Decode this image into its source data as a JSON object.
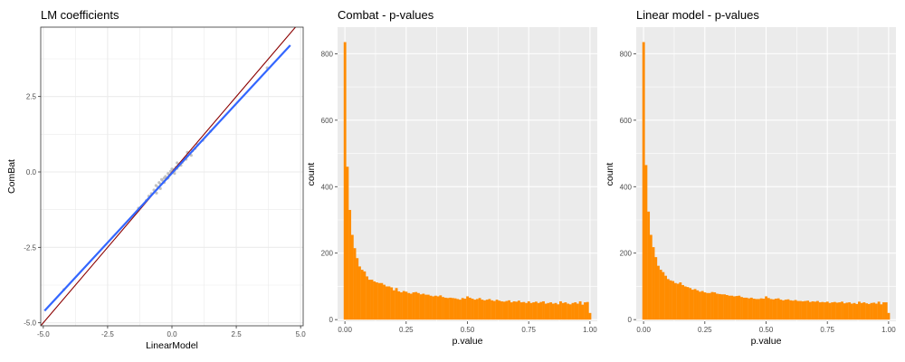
{
  "colors": {
    "bar_fill": "#ff8c00",
    "regression_line": "#3366ff",
    "identity_line": "#8b0000",
    "scatter_points": "#b3b3b3",
    "panel_bg_grey": "#ebebeb",
    "panel_bg_white": "#ffffff",
    "grid_on_grey": "#ffffff",
    "grid_on_white": "#ebebeb"
  },
  "chart_data": [
    {
      "type": "scatter",
      "title": "LM coefficients",
      "xlabel": "LinearModel",
      "ylabel": "ComBat",
      "xlim": [
        -5.1,
        5.1
      ],
      "ylim": [
        -5.1,
        4.8
      ],
      "x_ticks": [
        -5.0,
        -2.5,
        0.0,
        2.5,
        5.0
      ],
      "x_tick_labels": [
        "-5.0",
        "-2.5",
        "0.0",
        "2.5",
        "5.0"
      ],
      "y_ticks": [
        -5.0,
        -2.5,
        0.0,
        2.5
      ],
      "y_tick_labels": [
        "-5.0",
        "-2.5",
        "0.0",
        "2.5"
      ],
      "grid": true,
      "points": [
        [
          -0.62,
          -0.45
        ],
        [
          -0.55,
          -0.5
        ],
        [
          -0.5,
          -0.35
        ],
        [
          -0.45,
          -0.4
        ],
        [
          -0.4,
          -0.25
        ],
        [
          -0.35,
          -0.3
        ],
        [
          -0.3,
          -0.2
        ],
        [
          -0.25,
          -0.15
        ],
        [
          -0.2,
          -0.22
        ],
        [
          -0.15,
          -0.05
        ],
        [
          -0.1,
          -0.1
        ],
        [
          -0.05,
          0.02
        ],
        [
          0.0,
          -0.02
        ],
        [
          0.05,
          0.08
        ],
        [
          0.1,
          0.05
        ],
        [
          0.15,
          0.15
        ],
        [
          0.2,
          0.12
        ],
        [
          0.25,
          0.2
        ],
        [
          0.3,
          0.25
        ],
        [
          0.35,
          0.3
        ],
        [
          0.4,
          0.32
        ],
        [
          0.45,
          0.38
        ],
        [
          0.5,
          0.45
        ],
        [
          0.55,
          0.42
        ],
        [
          0.6,
          0.52
        ],
        [
          0.7,
          0.6
        ],
        [
          0.8,
          0.7
        ],
        [
          0.9,
          0.78
        ],
        [
          1.0,
          0.9
        ],
        [
          1.2,
          1.05
        ],
        [
          -0.7,
          -0.6
        ],
        [
          -0.8,
          -0.72
        ],
        [
          -0.9,
          -0.8
        ],
        [
          -1.0,
          -0.95
        ],
        [
          -0.3,
          -0.35
        ],
        [
          0.2,
          0.3
        ],
        [
          0.0,
          0.1
        ],
        [
          -0.15,
          -0.2
        ],
        [
          0.35,
          0.22
        ],
        [
          0.1,
          -0.05
        ],
        [
          -0.45,
          -0.55
        ],
        [
          0.6,
          0.65
        ],
        [
          0.75,
          0.55
        ],
        [
          -0.6,
          -0.7
        ],
        [
          3.7,
          3.45
        ],
        [
          -4.2,
          -3.9
        ],
        [
          1.5,
          1.35
        ],
        [
          -1.3,
          -1.2
        ]
      ],
      "regression_line": {
        "x": [
          -4.95,
          4.6
        ],
        "y": [
          -4.6,
          4.2
        ]
      },
      "identity_line": {
        "x": [
          -5.1,
          4.85
        ],
        "y": [
          -5.1,
          4.85
        ]
      }
    },
    {
      "type": "bar",
      "title": "Combat - p-values",
      "xlabel": "p.value",
      "ylabel": "count",
      "xlim": [
        -0.03,
        1.03
      ],
      "ylim": [
        -5,
        880
      ],
      "x_ticks": [
        0.0,
        0.25,
        0.5,
        0.75,
        1.0
      ],
      "x_tick_labels": [
        "0.00",
        "0.25",
        "0.50",
        "0.75",
        "1.00"
      ],
      "y_ticks": [
        0,
        200,
        400,
        600,
        800
      ],
      "y_tick_labels": [
        "0",
        "200",
        "400",
        "600",
        "800"
      ],
      "grid": true,
      "bin_width": 0.01,
      "bin_start": -0.005,
      "values": [
        835,
        460,
        330,
        255,
        215,
        185,
        160,
        150,
        145,
        130,
        120,
        120,
        115,
        112,
        110,
        110,
        105,
        100,
        100,
        97,
        88,
        95,
        85,
        82,
        86,
        84,
        80,
        78,
        82,
        83,
        80,
        76,
        78,
        75,
        75,
        72,
        70,
        72,
        70,
        73,
        68,
        66,
        65,
        66,
        65,
        64,
        62,
        60,
        65,
        63,
        70,
        66,
        63,
        60,
        62,
        65,
        60,
        58,
        60,
        62,
        58,
        56,
        60,
        57,
        55,
        54,
        56,
        58,
        52,
        55,
        54,
        57,
        52,
        53,
        50,
        55,
        50,
        52,
        54,
        50,
        53,
        55,
        48,
        50,
        52,
        48,
        50,
        46,
        55,
        50,
        52,
        48,
        46,
        50,
        52,
        48,
        55,
        45,
        52,
        53,
        20
      ]
    },
    {
      "type": "bar",
      "title": "Linear model - p-values",
      "xlabel": "p.value",
      "ylabel": "count",
      "xlim": [
        -0.03,
        1.03
      ],
      "ylim": [
        -5,
        880
      ],
      "x_ticks": [
        0.0,
        0.25,
        0.5,
        0.75,
        1.0
      ],
      "x_tick_labels": [
        "0.00",
        "0.25",
        "0.50",
        "0.75",
        "1.00"
      ],
      "y_ticks": [
        0,
        200,
        400,
        600,
        800
      ],
      "y_tick_labels": [
        "0",
        "200",
        "400",
        "600",
        "800"
      ],
      "grid": true,
      "bin_width": 0.01,
      "bin_start": -0.005,
      "values": [
        835,
        465,
        325,
        255,
        218,
        188,
        162,
        150,
        143,
        132,
        122,
        118,
        116,
        110,
        108,
        112,
        104,
        100,
        98,
        95,
        90,
        92,
        88,
        84,
        86,
        82,
        80,
        80,
        83,
        82,
        78,
        77,
        76,
        76,
        74,
        72,
        72,
        70,
        71,
        72,
        68,
        66,
        66,
        64,
        66,
        63,
        62,
        62,
        64,
        63,
        70,
        65,
        62,
        61,
        63,
        64,
        60,
        58,
        60,
        61,
        58,
        57,
        59,
        56,
        56,
        55,
        56,
        57,
        53,
        55,
        54,
        56,
        52,
        53,
        52,
        54,
        50,
        52,
        53,
        51,
        52,
        54,
        49,
        51,
        52,
        48,
        50,
        47,
        54,
        50,
        52,
        49,
        47,
        50,
        51,
        48,
        54,
        46,
        52,
        52,
        20
      ]
    }
  ]
}
